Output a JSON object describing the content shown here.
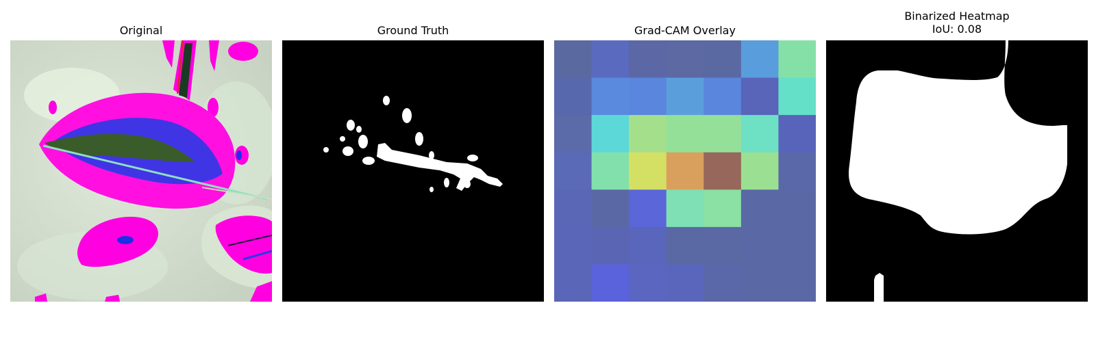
{
  "panels": [
    {
      "title": "Original"
    },
    {
      "title": "Ground Truth"
    },
    {
      "title": "Grad-CAM Overlay"
    },
    {
      "title": "Binarized Heatmap\nIoU: 0.08"
    }
  ],
  "gradcam": {
    "grid": [
      [
        "#5a6aa0",
        "#5a6bbf",
        "#5c68a5",
        "#5c69a2",
        "#5b69a2",
        "#5a9ddc",
        "#85e0a8"
      ],
      [
        "#5868ac",
        "#5a8ade",
        "#5a86de",
        "#5a9fdc",
        "#5a86de",
        "#5865b8",
        "#64e0c8"
      ],
      [
        "#5b6aa8",
        "#5dd8d8",
        "#a4e08c",
        "#94e098",
        "#94e098",
        "#6ee0c4",
        "#5863ba"
      ],
      [
        "#5a6ab6",
        "#82e0ac",
        "#d4e064",
        "#d9a05d",
        "#96675a",
        "#9be092",
        "#5a68aa"
      ],
      [
        "#5a66b6",
        "#5a68a6",
        "#5b66d8",
        "#7ee0b4",
        "#8be0a4",
        "#5a68a6",
        "#5a68a6"
      ],
      [
        "#5a66b8",
        "#5a66b4",
        "#5a66bc",
        "#5a68a4",
        "#5a68a4",
        "#5a68a6",
        "#5a68a6"
      ],
      [
        "#5a66b8",
        "#5a63dc",
        "#5a66c0",
        "#5a66bc",
        "#5a68aa",
        "#5a68a6",
        "#5a68a6"
      ]
    ]
  }
}
